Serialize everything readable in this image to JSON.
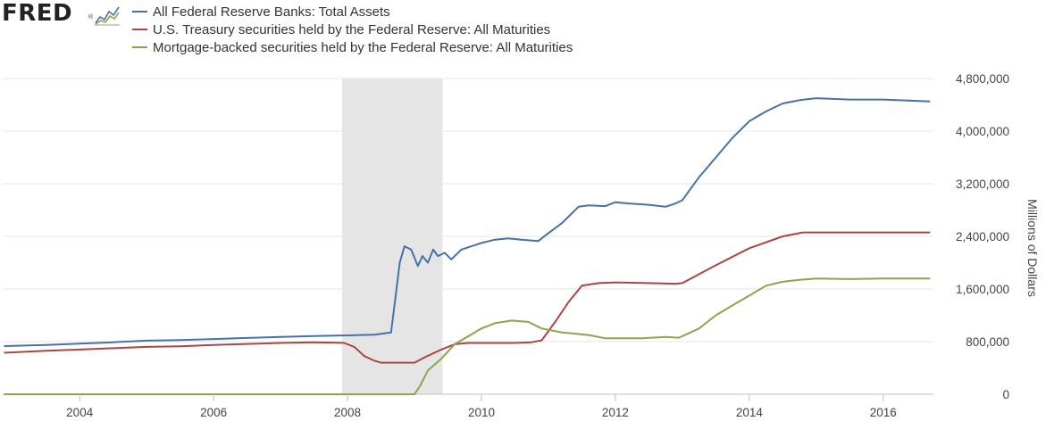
{
  "logo": {
    "text": "FRED",
    "reg": "®",
    "icon": "fred-chart-icon"
  },
  "chart_data": {
    "type": "line",
    "title": "",
    "xlabel": "",
    "ylabel": "Millions of Dollars",
    "xlim": [
      2002.85,
      2016.75
    ],
    "ylim": [
      0,
      4800000
    ],
    "yticks": [
      0,
      800000,
      1600000,
      2400000,
      3200000,
      4000000,
      4800000
    ],
    "ytick_labels": [
      "0",
      "800,000",
      "1,600,000",
      "2,400,000",
      "3,200,000",
      "4,000,000",
      "4,800,000"
    ],
    "xticks": [
      2004,
      2006,
      2008,
      2010,
      2012,
      2014,
      2016
    ],
    "xtick_labels": [
      "2004",
      "2006",
      "2008",
      "2010",
      "2012",
      "2014",
      "2016"
    ],
    "grid": "horizontal",
    "legend_position": "top-left",
    "recession_shading": [
      [
        2007.92,
        2009.42
      ]
    ],
    "series": [
      {
        "name": "All Federal Reserve Banks: Total Assets",
        "color": "#4572a7",
        "x": [
          2002.87,
          2003.5,
          2004.0,
          2004.5,
          2005.0,
          2005.5,
          2006.0,
          2006.5,
          2007.0,
          2007.5,
          2008.0,
          2008.4,
          2008.65,
          2008.72,
          2008.78,
          2008.85,
          2008.95,
          2009.05,
          2009.12,
          2009.2,
          2009.28,
          2009.35,
          2009.45,
          2009.55,
          2009.7,
          2009.85,
          2010.0,
          2010.2,
          2010.4,
          2010.6,
          2010.85,
          2011.0,
          2011.2,
          2011.45,
          2011.6,
          2011.85,
          2012.0,
          2012.2,
          2012.5,
          2012.75,
          2012.9,
          2013.0,
          2013.25,
          2013.5,
          2013.75,
          2014.0,
          2014.25,
          2014.5,
          2014.75,
          2015.0,
          2015.5,
          2016.0,
          2016.5,
          2016.7
        ],
        "y": [
          732000,
          750000,
          770000,
          790000,
          815000,
          825000,
          840000,
          855000,
          870000,
          885000,
          895000,
          905000,
          940000,
          1500000,
          2000000,
          2250000,
          2200000,
          1950000,
          2100000,
          2000000,
          2200000,
          2100000,
          2150000,
          2050000,
          2200000,
          2250000,
          2300000,
          2350000,
          2370000,
          2350000,
          2330000,
          2450000,
          2600000,
          2850000,
          2870000,
          2860000,
          2920000,
          2900000,
          2880000,
          2850000,
          2900000,
          2950000,
          3300000,
          3600000,
          3900000,
          4150000,
          4300000,
          4420000,
          4470000,
          4500000,
          4480000,
          4480000,
          4460000,
          4450000
        ]
      },
      {
        "name": "U.S. Treasury securities held by the Federal Reserve: All Maturities",
        "color": "#aa4643",
        "x": [
          2002.87,
          2003.5,
          2004.0,
          2004.5,
          2005.0,
          2005.5,
          2006.0,
          2006.5,
          2007.0,
          2007.5,
          2007.95,
          2008.1,
          2008.25,
          2008.4,
          2008.5,
          2009.0,
          2009.15,
          2009.4,
          2009.6,
          2009.8,
          2010.0,
          2010.5,
          2010.75,
          2010.9,
          2011.1,
          2011.3,
          2011.5,
          2011.75,
          2012.0,
          2012.5,
          2012.9,
          2013.0,
          2013.5,
          2014.0,
          2014.5,
          2014.8,
          2015.0,
          2015.5,
          2016.0,
          2016.7
        ],
        "y": [
          630000,
          660000,
          680000,
          700000,
          720000,
          730000,
          750000,
          765000,
          780000,
          790000,
          780000,
          720000,
          580000,
          510000,
          480000,
          480000,
          560000,
          680000,
          760000,
          780000,
          780000,
          780000,
          790000,
          820000,
          1100000,
          1400000,
          1650000,
          1690000,
          1700000,
          1690000,
          1680000,
          1690000,
          1960000,
          2220000,
          2400000,
          2460000,
          2460000,
          2460000,
          2460000,
          2460000
        ]
      },
      {
        "name": "Mortgage-backed securities held by the Federal Reserve: All Maturities",
        "color": "#89a54e",
        "x": [
          2002.87,
          2009.0,
          2009.08,
          2009.2,
          2009.4,
          2009.6,
          2009.8,
          2010.0,
          2010.2,
          2010.45,
          2010.7,
          2010.9,
          2011.2,
          2011.6,
          2011.85,
          2012.0,
          2012.4,
          2012.75,
          2012.95,
          2013.25,
          2013.5,
          2013.75,
          2014.0,
          2014.25,
          2014.5,
          2014.75,
          2015.0,
          2015.5,
          2016.0,
          2016.7
        ],
        "y": [
          0,
          0,
          120000,
          360000,
          540000,
          760000,
          880000,
          1000000,
          1080000,
          1120000,
          1100000,
          1000000,
          940000,
          900000,
          850000,
          850000,
          850000,
          870000,
          860000,
          1000000,
          1200000,
          1350000,
          1500000,
          1650000,
          1710000,
          1740000,
          1760000,
          1750000,
          1760000,
          1760000
        ]
      }
    ]
  }
}
